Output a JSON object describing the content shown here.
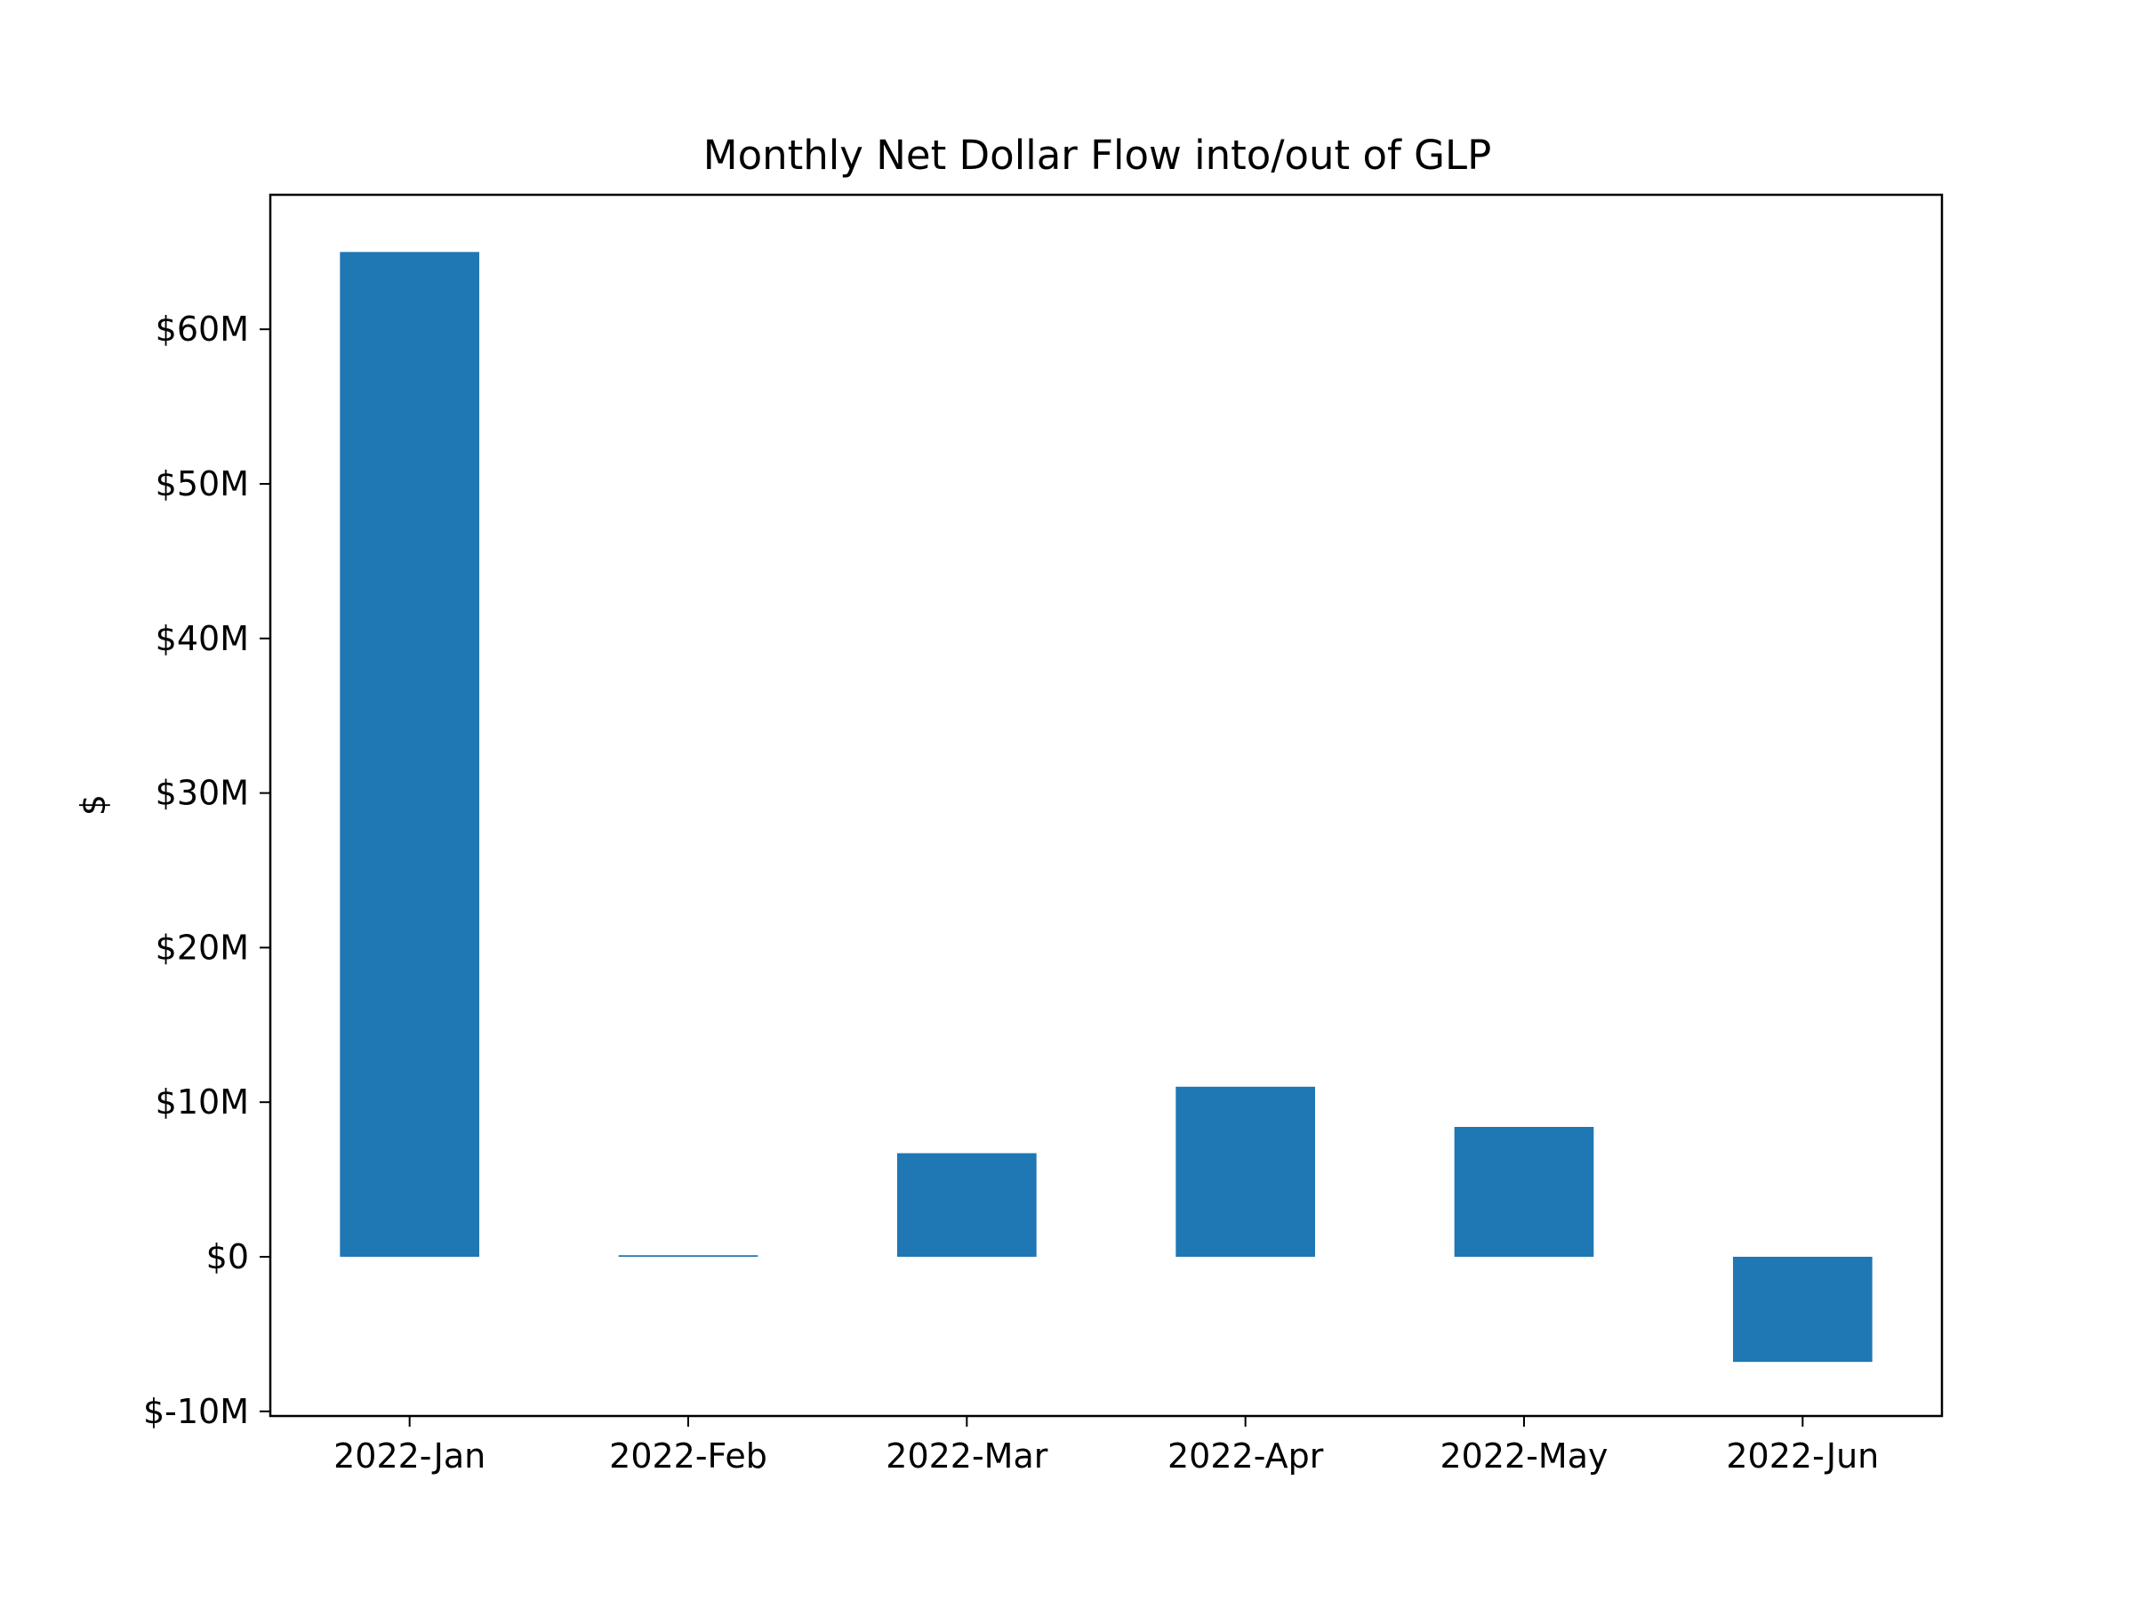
{
  "chart_data": {
    "type": "bar",
    "title": "Monthly Net Dollar Flow into/out of GLP",
    "xlabel": "",
    "ylabel": "$",
    "categories": [
      "2022-Jan",
      "2022-Feb",
      "2022-Mar",
      "2022-Apr",
      "2022-May",
      "2022-Jun"
    ],
    "values": [
      65000000,
      100000,
      6700000,
      11000000,
      8400000,
      -6800000
    ],
    "ylim": [
      -10300000,
      68700000
    ],
    "yticks": [
      -10000000,
      0,
      10000000,
      20000000,
      30000000,
      40000000,
      50000000,
      60000000
    ],
    "ytick_labels": [
      "$-10M",
      "$0",
      "$10M",
      "$20M",
      "$30M",
      "$40M",
      "$50M",
      "$60M"
    ],
    "bar_color": "#1f77b4",
    "grid": false,
    "legend": "none"
  }
}
